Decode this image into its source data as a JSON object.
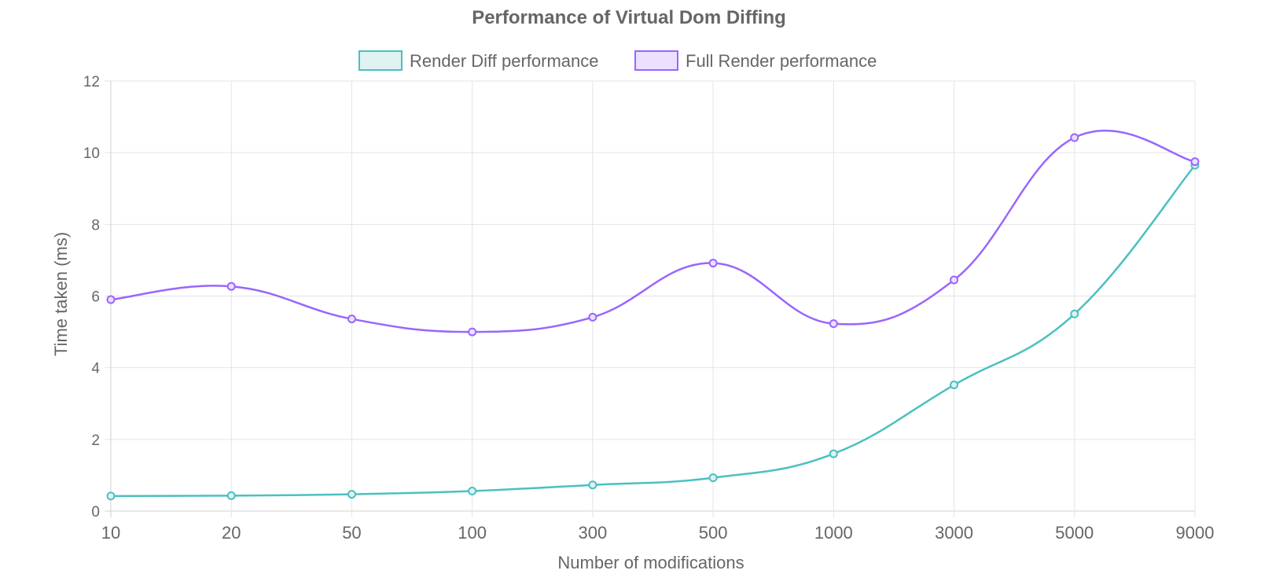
{
  "chart_data": {
    "type": "line",
    "title": "Performance of Virtual Dom Diffing",
    "xlabel": "Number of modifications",
    "ylabel": "Time taken (ms)",
    "categories": [
      "10",
      "20",
      "50",
      "100",
      "300",
      "500",
      "1000",
      "3000",
      "5000",
      "9000"
    ],
    "ylim": [
      0,
      12
    ],
    "yticks": [
      0,
      2,
      4,
      6,
      8,
      10,
      12
    ],
    "grid": true,
    "legend_position": "top",
    "series": [
      {
        "name": "Render Diff performance",
        "values": [
          0.42,
          0.43,
          0.47,
          0.56,
          0.73,
          0.93,
          1.6,
          3.52,
          5.5,
          9.65
        ],
        "color": "#4bc0c0",
        "fill": "#e0f2f2"
      },
      {
        "name": "Full Render performance",
        "values": [
          5.9,
          6.27,
          5.36,
          5.0,
          5.41,
          6.92,
          5.23,
          6.45,
          10.42,
          9.75
        ],
        "color": "#9966ff",
        "fill": "#ebe0ff"
      }
    ]
  }
}
